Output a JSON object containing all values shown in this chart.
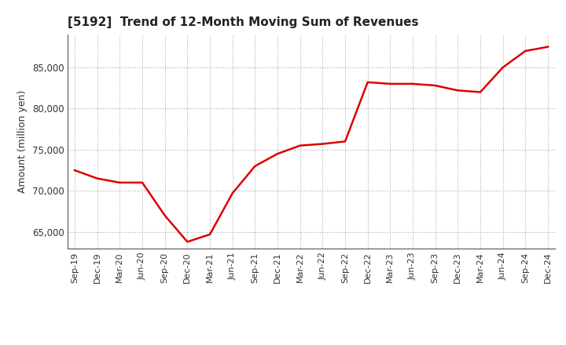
{
  "title": "[5192]  Trend of 12-Month Moving Sum of Revenues",
  "ylabel": "Amount (million yen)",
  "line_color": "#dd0000",
  "line_width": 1.8,
  "background_color": "#ffffff",
  "grid_color": "#aaaaaa",
  "ylim": [
    63000,
    89000
  ],
  "yticks": [
    65000,
    70000,
    75000,
    80000,
    85000
  ],
  "x_labels": [
    "Sep-19",
    "Dec-19",
    "Mar-20",
    "Jun-20",
    "Sep-20",
    "Dec-20",
    "Mar-21",
    "Jun-21",
    "Sep-21",
    "Dec-21",
    "Mar-22",
    "Jun-22",
    "Sep-22",
    "Dec-22",
    "Mar-23",
    "Jun-23",
    "Sep-23",
    "Dec-23",
    "Mar-24",
    "Jun-24",
    "Sep-24",
    "Dec-24"
  ],
  "y_values": [
    72500,
    71500,
    71000,
    71000,
    67000,
    63800,
    64700,
    69700,
    73000,
    74500,
    75500,
    75700,
    76000,
    83200,
    83000,
    83000,
    82800,
    82200,
    82000,
    85000,
    87000,
    87500
  ]
}
